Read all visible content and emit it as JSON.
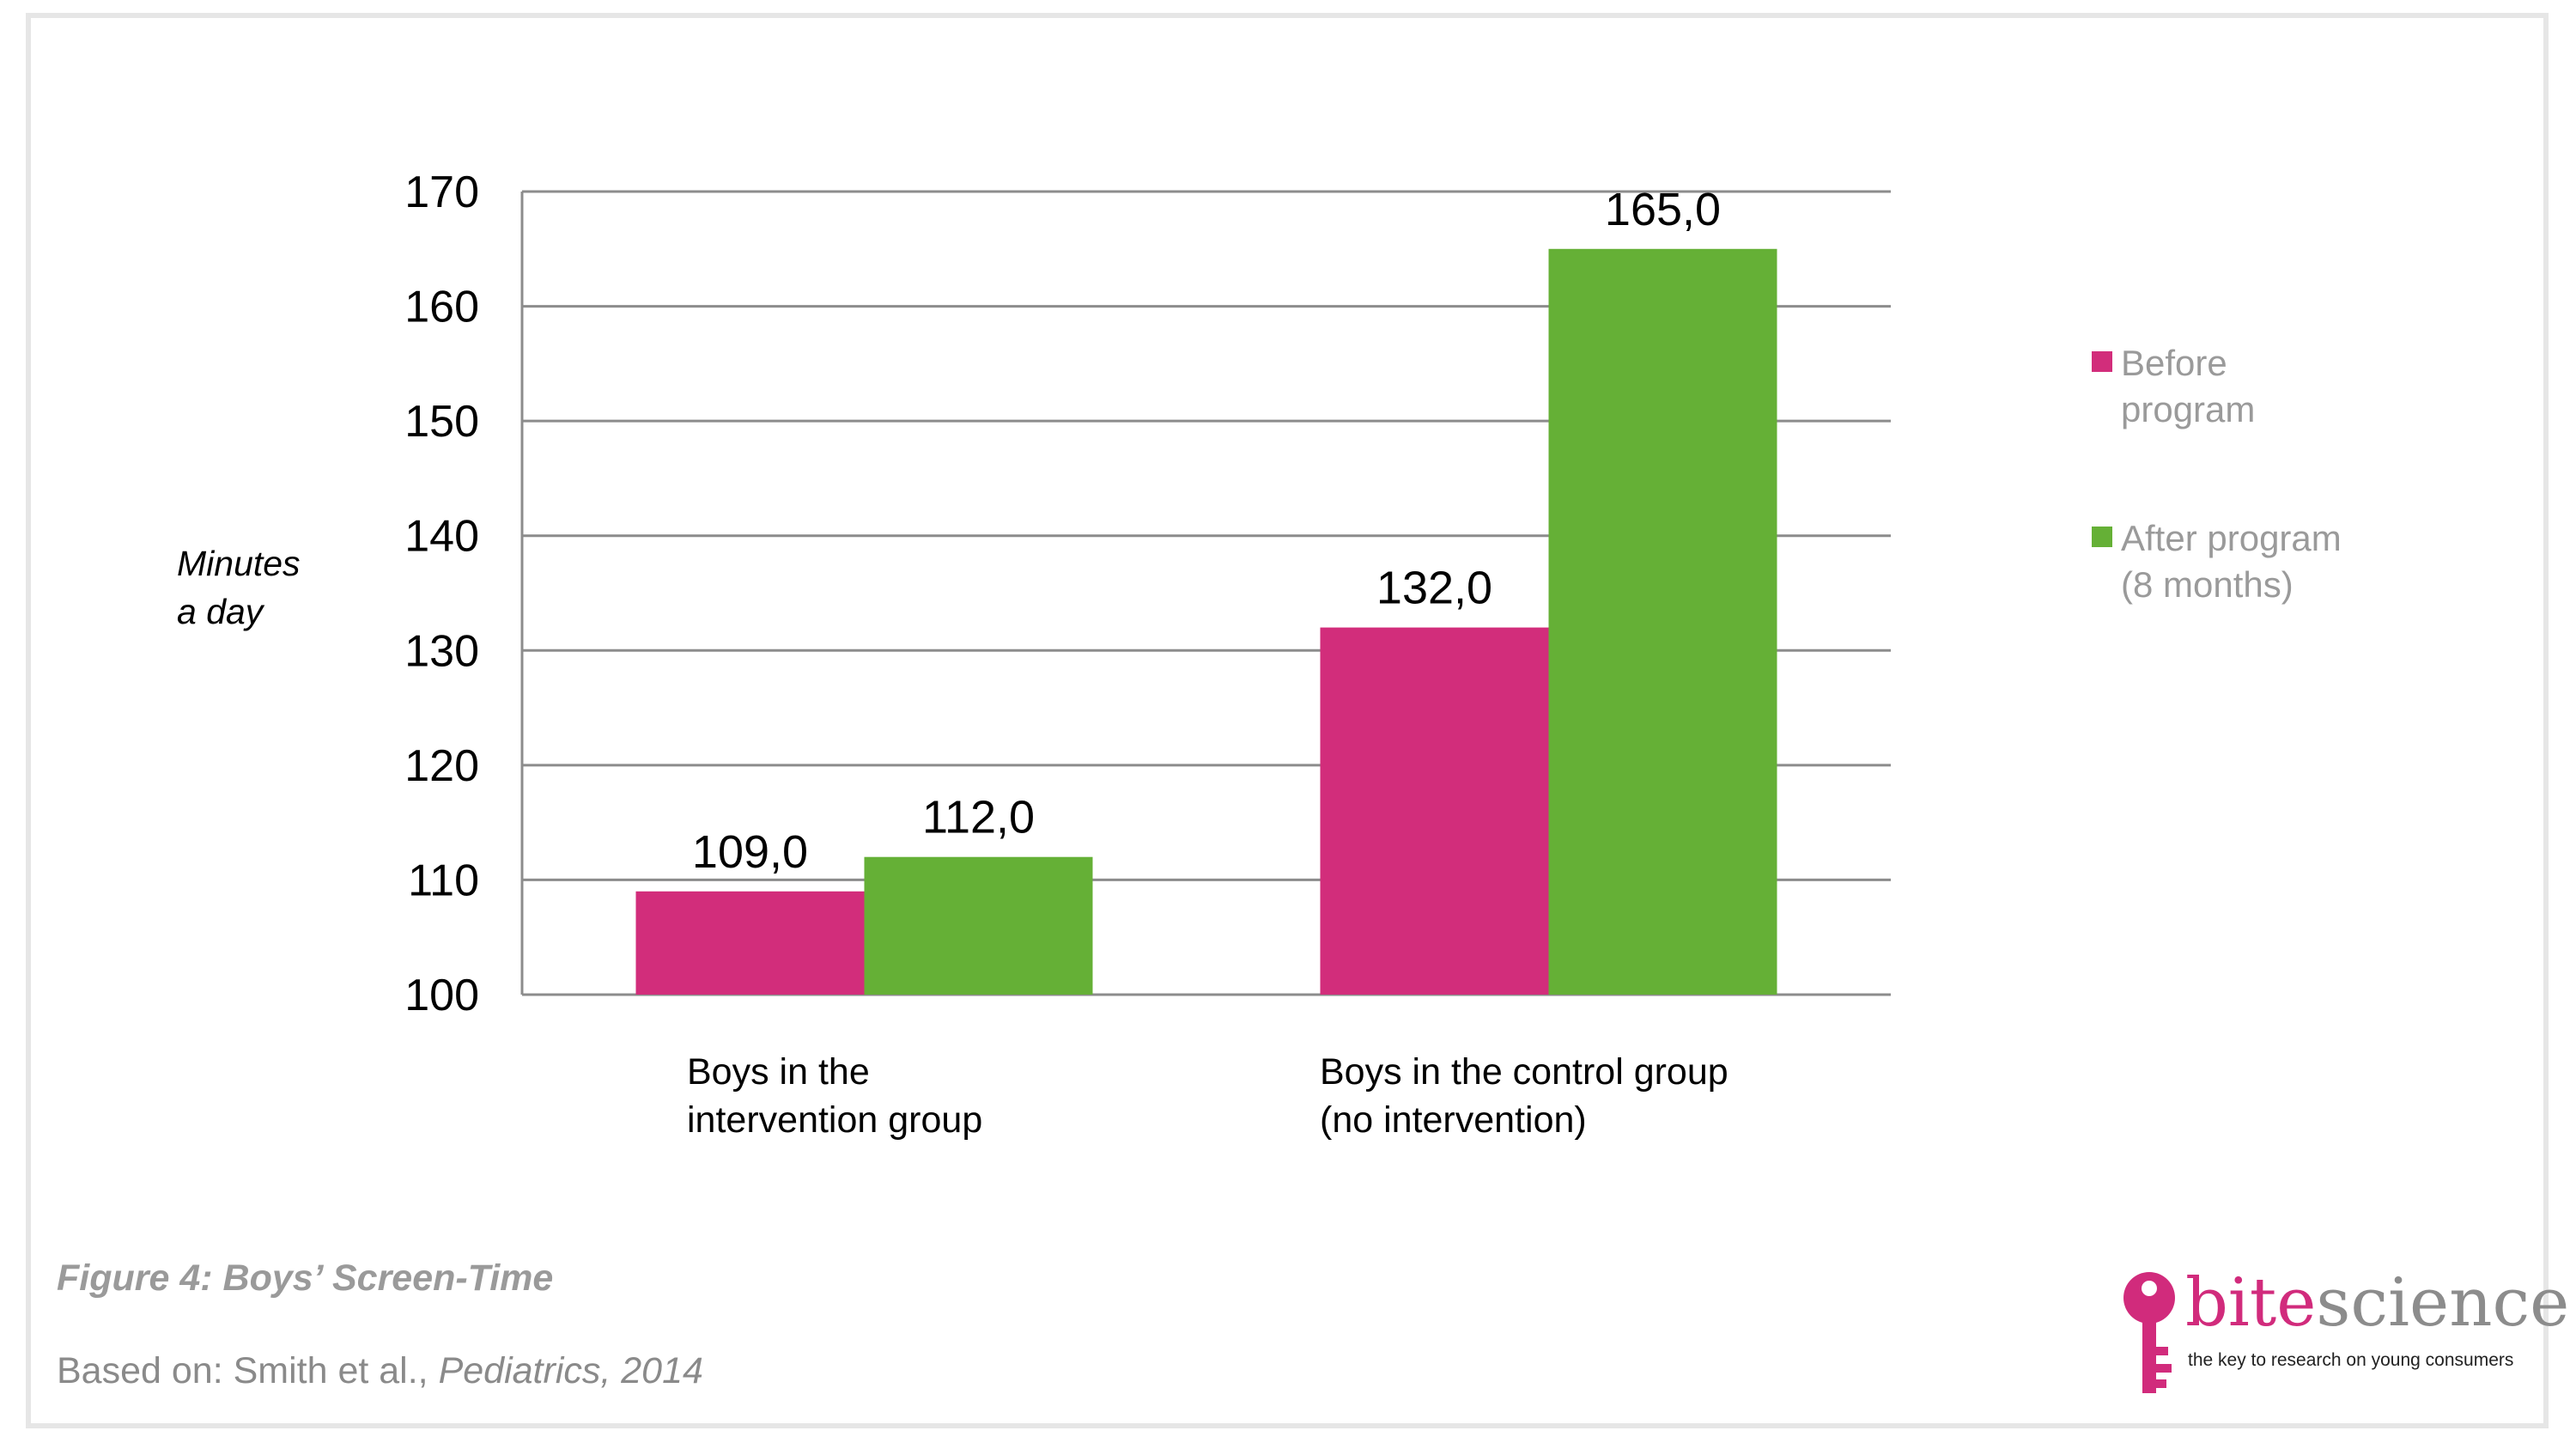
{
  "chart_data": {
    "type": "bar",
    "categories": [
      "Boys in the\nintervention group",
      "Boys in the control group\n(no intervention)"
    ],
    "series": [
      {
        "name": "Before\nprogram",
        "color": "#d22d7b",
        "values": [
          109.0,
          132.0
        ],
        "labels": [
          "109,0",
          "132,0"
        ]
      },
      {
        "name": "After program\n(8 months)",
        "color": "#65b036",
        "values": [
          112.0,
          165.0
        ],
        "labels": [
          "112,0",
          "165,0"
        ]
      }
    ],
    "ylabel": "Minutes\na day",
    "ylim": [
      100,
      170
    ],
    "yticks": [
      "100",
      "110",
      "120",
      "130",
      "140",
      "150",
      "160",
      "170"
    ],
    "grid": true,
    "legend": "right"
  },
  "figure": {
    "title": "Figure 4: Boys’ Screen-Time",
    "source_prefix": "Based on: Smith et al., ",
    "source_italic": "Pediatrics, 2014"
  },
  "logo": {
    "brand_first": "bite",
    "brand_second": "science",
    "tagline": "the key to research on young consumers",
    "icon": "key-icon"
  }
}
